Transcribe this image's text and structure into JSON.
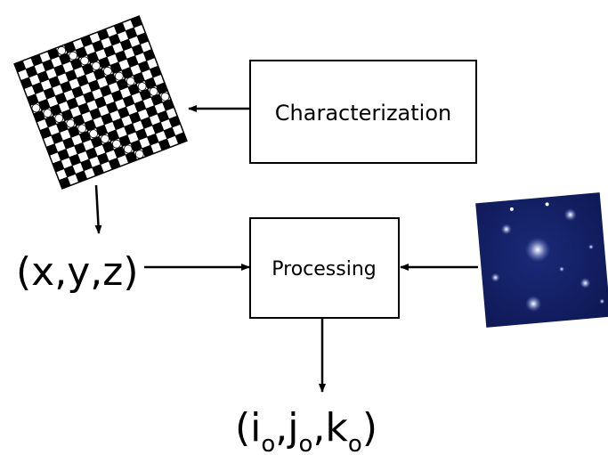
{
  "boxes": {
    "characterization": "Characterization",
    "processing": "Processing"
  },
  "input_label": "(x,y,z)",
  "output_label": {
    "parts": [
      "(i",
      ",j",
      ",k",
      ")"
    ],
    "subscripts": [
      "o",
      "o",
      "o"
    ]
  }
}
